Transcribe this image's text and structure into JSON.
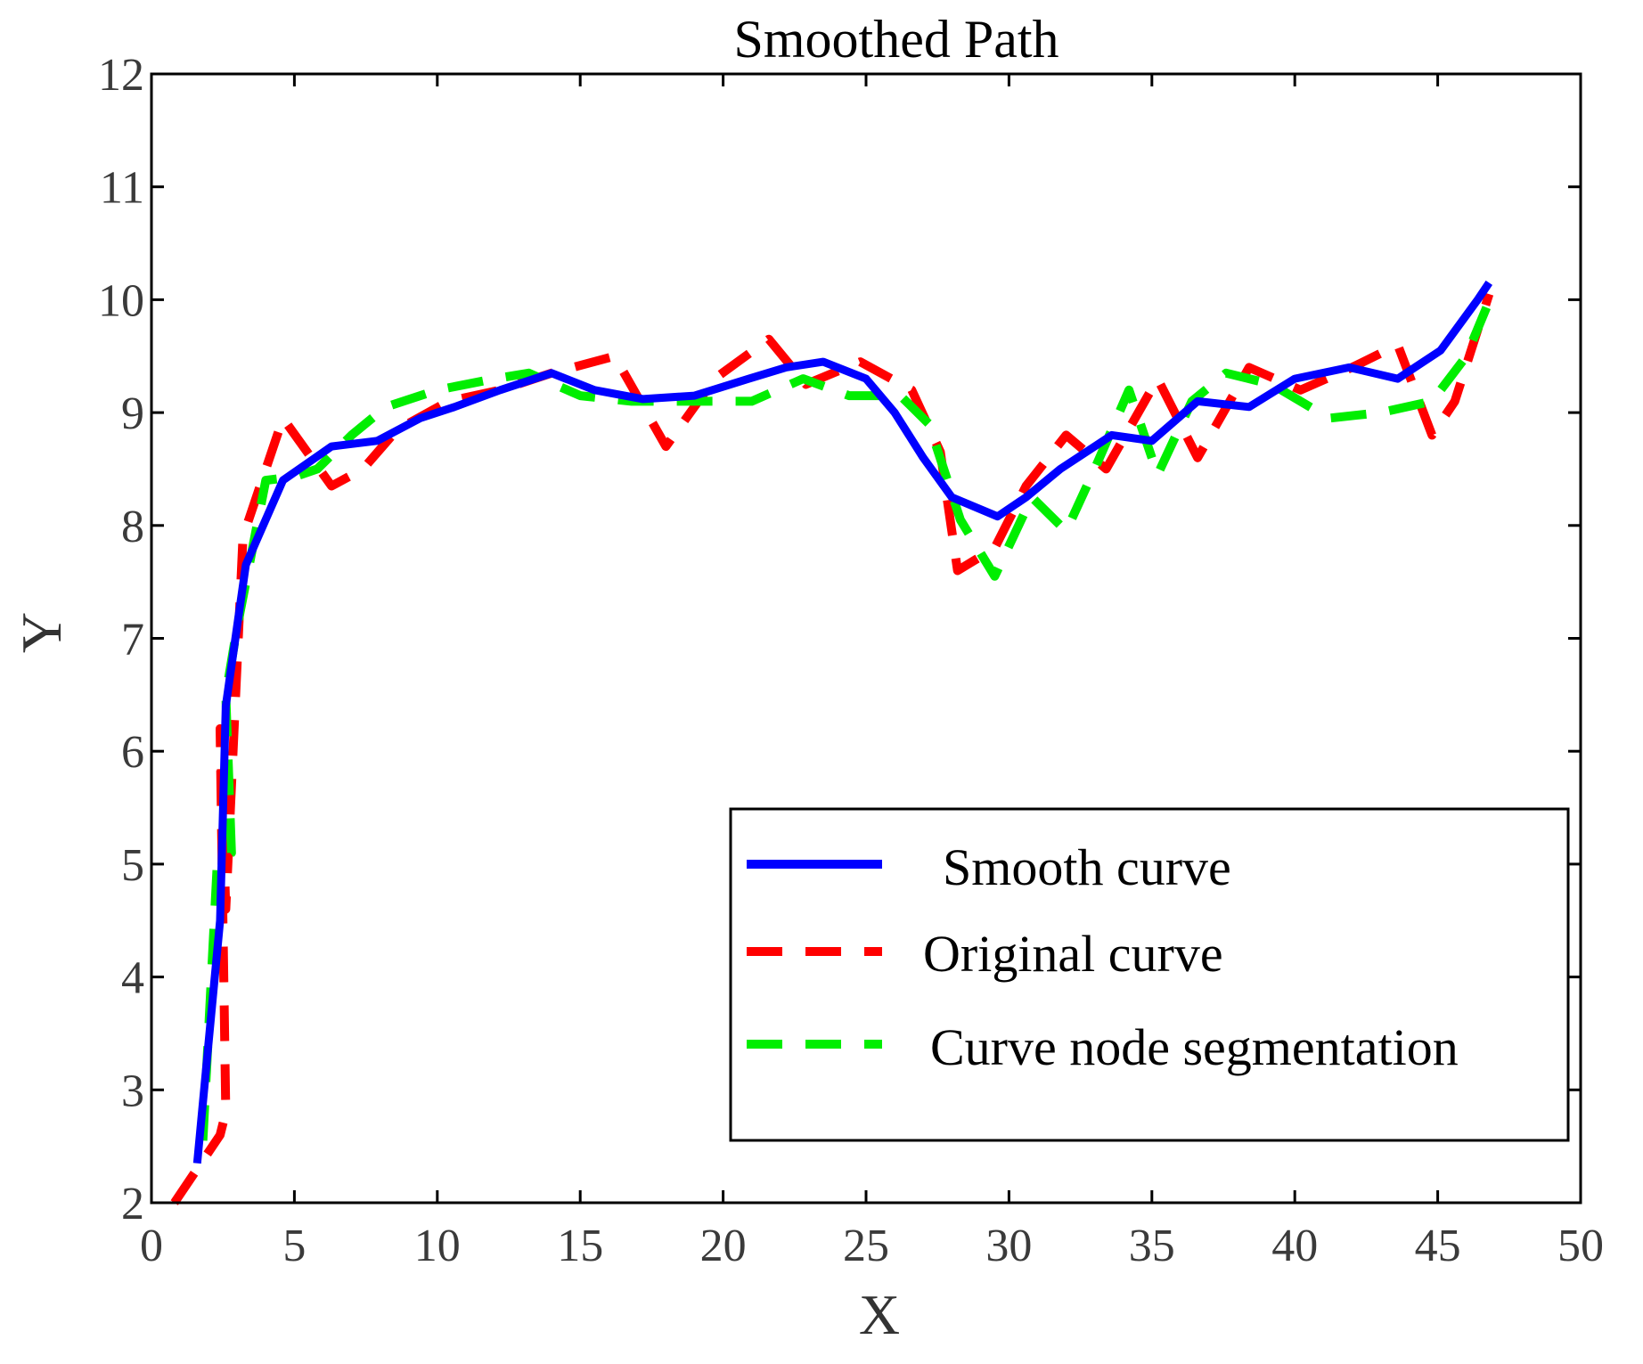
{
  "chart_data": {
    "type": "line",
    "title": "Smoothed Path",
    "xlabel": "X",
    "ylabel": "Y",
    "xlim": [
      0,
      50
    ],
    "ylim": [
      2,
      12
    ],
    "xticks": [
      0,
      5,
      10,
      15,
      20,
      25,
      30,
      35,
      40,
      45,
      50
    ],
    "yticks": [
      2,
      3,
      4,
      5,
      6,
      7,
      8,
      9,
      10,
      11,
      12
    ],
    "grid": false,
    "legend_position": "bottom-right",
    "series": [
      {
        "name": "Smooth curve",
        "color": "#0000ff",
        "style": "solid",
        "x": [
          1.6,
          2.4,
          2.6,
          3.3,
          4.6,
          6.3,
          7.9,
          9.4,
          10.6,
          12.2,
          14.0,
          15.5,
          17.2,
          19.0,
          20.9,
          22.2,
          23.5,
          25.0,
          26.0,
          27.0,
          28.0,
          29.6,
          30.6,
          31.8,
          33.6,
          35.0,
          36.6,
          38.4,
          40.0,
          41.9,
          43.6,
          45.1,
          46.4,
          46.8
        ],
        "y": [
          2.35,
          4.5,
          6.4,
          7.65,
          8.4,
          8.7,
          8.75,
          8.95,
          9.05,
          9.2,
          9.35,
          9.2,
          9.12,
          9.15,
          9.3,
          9.4,
          9.45,
          9.3,
          9.0,
          8.6,
          8.25,
          8.08,
          8.25,
          8.5,
          8.8,
          8.75,
          9.1,
          9.05,
          9.3,
          9.4,
          9.3,
          9.55,
          10.0,
          10.15
        ]
      },
      {
        "name": "Original curve",
        "color": "#ff0000",
        "style": "dashed",
        "x": [
          0.8,
          2.4,
          2.6,
          2.4,
          2.6,
          3.2,
          4.6,
          6.3,
          7.4,
          8.6,
          10.4,
          12.2,
          14.0,
          16.2,
          18.0,
          19.7,
          21.6,
          22.9,
          24.8,
          26.6,
          27.6,
          28.2,
          29.5,
          30.6,
          32.0,
          33.4,
          35.2,
          36.6,
          38.4,
          40.2,
          42.0,
          43.6,
          44.8,
          45.6,
          46.8
        ],
        "y": [
          2.0,
          2.6,
          2.8,
          6.2,
          4.6,
          7.9,
          8.95,
          8.35,
          8.5,
          8.85,
          9.1,
          9.2,
          9.35,
          9.5,
          8.7,
          9.3,
          9.65,
          9.25,
          9.45,
          9.2,
          8.65,
          7.6,
          7.8,
          8.35,
          8.8,
          8.5,
          9.3,
          8.6,
          9.4,
          9.2,
          9.4,
          9.6,
          8.8,
          9.1,
          10.05
        ]
      },
      {
        "name": "Curve node segmentation",
        "color": "#00ee00",
        "style": "dashed",
        "x": [
          1.8,
          2.3,
          2.8,
          2.6,
          3.0,
          4.0,
          5.0,
          5.8,
          7.0,
          8.2,
          10.0,
          12.0,
          13.2,
          15.0,
          16.8,
          19.0,
          21.0,
          22.8,
          24.4,
          26.2,
          27.2,
          28.3,
          29.5,
          30.8,
          32.0,
          33.0,
          34.2,
          35.2,
          36.4,
          37.6,
          39.2,
          41.2,
          43.0,
          44.8,
          46.0,
          46.9
        ],
        "y": [
          2.55,
          5.0,
          5.1,
          6.5,
          7.1,
          8.4,
          8.43,
          8.5,
          8.8,
          9.05,
          9.2,
          9.3,
          9.35,
          9.15,
          9.1,
          9.1,
          9.1,
          9.3,
          9.15,
          9.15,
          8.9,
          8.05,
          7.55,
          8.25,
          7.95,
          8.5,
          9.2,
          8.45,
          9.1,
          9.35,
          9.25,
          8.95,
          9.0,
          9.1,
          9.5,
          10.05
        ]
      }
    ]
  }
}
